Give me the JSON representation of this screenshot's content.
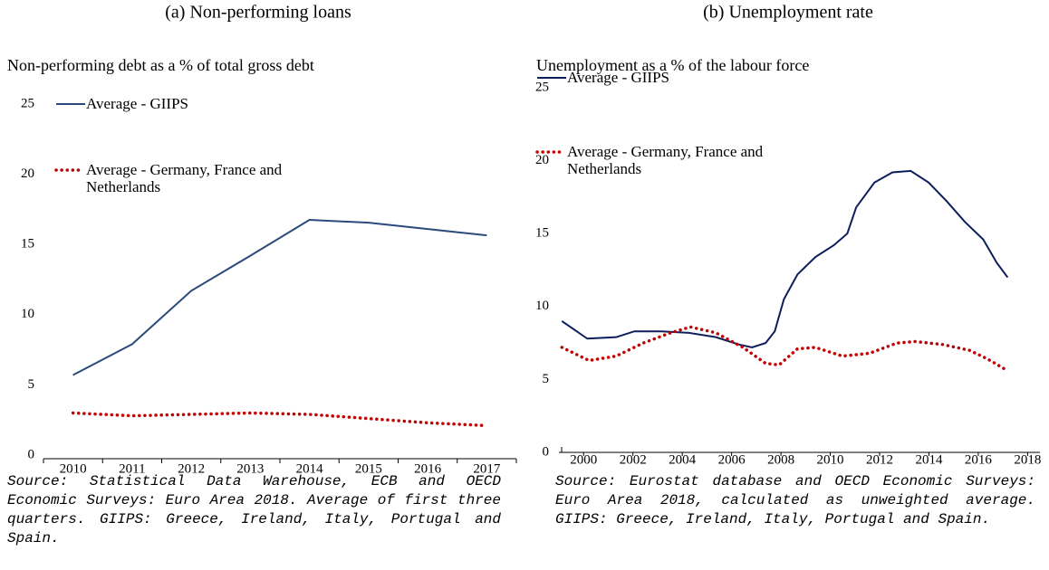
{
  "chart_data": [
    {
      "type": "line",
      "title": "(a) Non-performing loans",
      "subtitle": "Non-performing debt as a % of total gross debt",
      "categories": [
        "2010",
        "2011",
        "2012",
        "2013",
        "2014",
        "2015",
        "2016",
        "2017"
      ],
      "series": [
        {
          "name": "Average - GIIPS",
          "color": "#2b4a7c",
          "style": "solid",
          "values": [
            5.7,
            7.9,
            11.7,
            14.2,
            16.75,
            16.55,
            16.1,
            15.65
          ]
        },
        {
          "name": "Average - Germany, France and Netherlands",
          "color": "#c00000",
          "style": "dotted",
          "values": [
            3.0,
            2.8,
            2.9,
            3.0,
            2.9,
            2.6,
            2.3,
            2.1
          ]
        }
      ],
      "ylim": [
        0,
        25
      ],
      "yticks": [
        0,
        5,
        10,
        15,
        20,
        25
      ],
      "note": "Source: Statistical Data Warehouse, ECB and OECD Economic Surveys: Euro Area 2018. Average of first three quarters. GIIPS: Greece, Ireland, Italy, Portugal and Spain."
    },
    {
      "type": "line",
      "title": "(b) Unemployment rate",
      "subtitle": "Unemployment as a % of the labour force",
      "series": [
        {
          "name": "Average - GIIPS",
          "color": "#0c1f5c",
          "style": "solid",
          "x": [
            1999.12,
            2000.15,
            2001.32,
            2002.06,
            2003.16,
            2004.26,
            2005.36,
            2006.28,
            2006.83,
            2007.38,
            2007.75,
            2008.12,
            2008.67,
            2009.4,
            2010.14,
            2010.69,
            2011.05,
            2011.79,
            2012.52,
            2013.26,
            2013.99,
            2014.73,
            2015.46,
            2016.2,
            2016.75,
            2017.19
          ],
          "values": [
            9.0,
            7.8,
            7.9,
            8.3,
            8.3,
            8.2,
            7.9,
            7.4,
            7.2,
            7.5,
            8.3,
            10.5,
            12.2,
            13.4,
            14.2,
            15.0,
            16.8,
            18.5,
            19.2,
            19.3,
            18.5,
            17.2,
            15.8,
            14.6,
            13.0,
            12.0
          ]
        },
        {
          "name": "Average - Germany, France and Netherlands",
          "color": "#c00000",
          "style": "dotted",
          "x": [
            1999.12,
            2000.22,
            2001.32,
            2002.42,
            2003.53,
            2004.33,
            2005.36,
            2006.46,
            2007.38,
            2007.93,
            2008.67,
            2009.4,
            2010.5,
            2011.6,
            2012.71,
            2013.44,
            2014.54,
            2015.64,
            2016.38,
            2017.19
          ],
          "values": [
            7.2,
            6.3,
            6.6,
            7.5,
            8.2,
            8.6,
            8.2,
            7.2,
            6.1,
            6.0,
            7.1,
            7.2,
            6.6,
            6.8,
            7.5,
            7.6,
            7.4,
            7.0,
            6.4,
            5.6
          ]
        }
      ],
      "xlim": [
        1999,
        2018.5
      ],
      "xticks": [
        2000,
        2002,
        2004,
        2006,
        2008,
        2010,
        2012,
        2014,
        2016,
        2018
      ],
      "ylim": [
        0,
        25
      ],
      "yticks": [
        0,
        5,
        10,
        15,
        20,
        25
      ],
      "note": "Source: Eurostat database and OECD Economic Surveys: Euro Area 2018, calculated as unweighted average. GIIPS: Greece, Ireland, Italy, Portugal and Spain."
    }
  ]
}
